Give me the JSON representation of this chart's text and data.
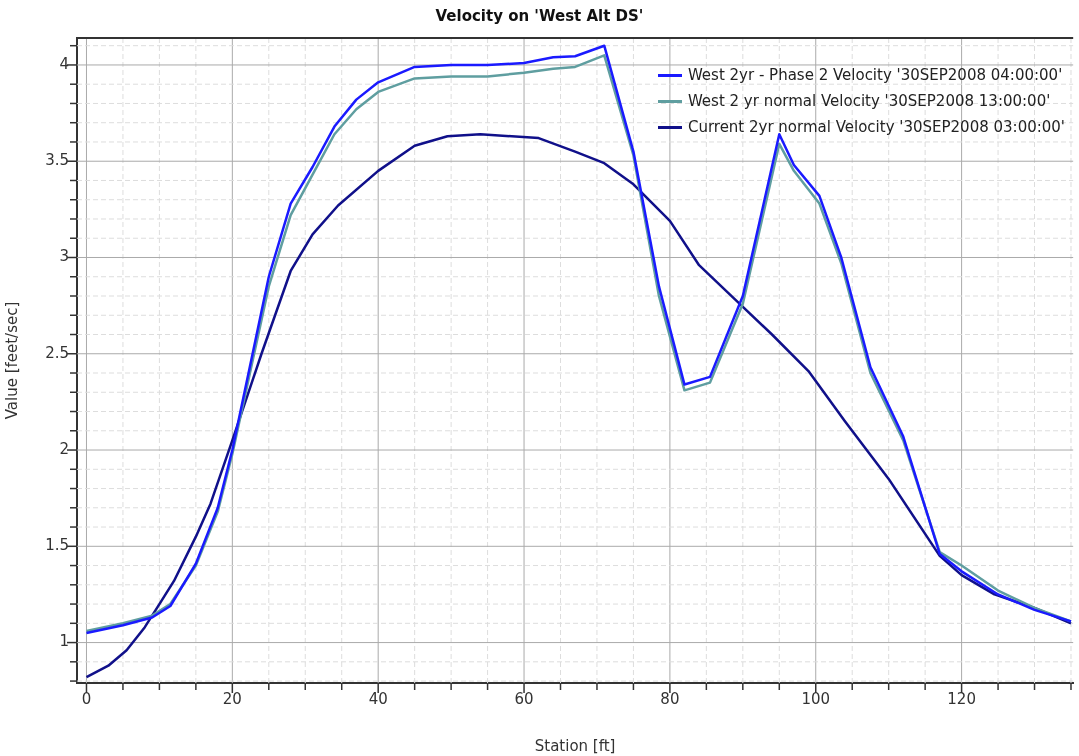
{
  "chart_data": {
    "type": "line",
    "title": "Velocity on 'West Alt DS'",
    "xlabel": "Station [ft]",
    "ylabel": "Value [feet/sec]",
    "xlim": [
      -1.3,
      135.3
    ],
    "ylim": [
      0.79,
      4.14
    ],
    "xticks": [
      0,
      {
        "value": 5,
        "label": null
      },
      {
        "value": 10,
        "label": null
      },
      {
        "value": 15,
        "label": null
      },
      20,
      {
        "value": 25,
        "label": null
      },
      {
        "value": 30,
        "label": null
      },
      {
        "value": 35,
        "label": null
      },
      40,
      {
        "value": 45,
        "label": null
      },
      {
        "value": 50,
        "label": null
      },
      {
        "value": 55,
        "label": null
      },
      60,
      {
        "value": 65,
        "label": null
      },
      {
        "value": 70,
        "label": null
      },
      {
        "value": 75,
        "label": null
      },
      80,
      {
        "value": 85,
        "label": null
      },
      {
        "value": 90,
        "label": null
      },
      {
        "value": 95,
        "label": null
      },
      100,
      {
        "value": 105,
        "label": null
      },
      {
        "value": 110,
        "label": null
      },
      {
        "value": 115,
        "label": null
      },
      120,
      {
        "value": 125,
        "label": null
      },
      {
        "value": 130,
        "label": null
      },
      {
        "value": 135,
        "label": null
      }
    ],
    "yticks": [
      {
        "value": 0.8,
        "label": null
      },
      {
        "value": 0.9,
        "label": null
      },
      1,
      {
        "value": 1.1,
        "label": null
      },
      {
        "value": 1.2,
        "label": null
      },
      {
        "value": 1.3,
        "label": null
      },
      {
        "value": 1.4,
        "label": null
      },
      1.5,
      {
        "value": 1.6,
        "label": null
      },
      {
        "value": 1.7,
        "label": null
      },
      {
        "value": 1.8,
        "label": null
      },
      {
        "value": 1.9,
        "label": null
      },
      2,
      {
        "value": 2.1,
        "label": null
      },
      {
        "value": 2.2,
        "label": null
      },
      {
        "value": 2.3,
        "label": null
      },
      {
        "value": 2.4,
        "label": null
      },
      2.5,
      {
        "value": 2.6,
        "label": null
      },
      {
        "value": 2.7,
        "label": null
      },
      {
        "value": 2.8,
        "label": null
      },
      {
        "value": 2.9,
        "label": null
      },
      3,
      {
        "value": 3.1,
        "label": null
      },
      {
        "value": 3.2,
        "label": null
      },
      {
        "value": 3.3,
        "label": null
      },
      {
        "value": 3.4,
        "label": null
      },
      3.5,
      {
        "value": 3.6,
        "label": null
      },
      {
        "value": 3.7,
        "label": null
      },
      {
        "value": 3.8,
        "label": null
      },
      {
        "value": 3.9,
        "label": null
      },
      4,
      {
        "value": 4.1,
        "label": null
      }
    ],
    "grid": true,
    "legend": "top right",
    "marker": "none",
    "line_style": "solid",
    "series": [
      {
        "name": "West 2yr - Phase 2 Velocity '30SEP2008 04:00:00'",
        "color": "#1a1aff",
        "x": [
          0,
          5,
          9,
          11.5,
          15,
          18,
          20,
          25,
          28,
          31,
          34,
          37,
          40,
          45,
          50,
          55,
          60,
          64,
          67,
          71,
          75,
          78.5,
          82,
          85.5,
          90,
          95,
          97,
          100.5,
          103.5,
          107.5,
          112,
          117,
          120,
          125,
          130,
          135
        ],
        "values": [
          1.05,
          1.09,
          1.13,
          1.19,
          1.41,
          1.7,
          2.0,
          2.9,
          3.28,
          3.47,
          3.68,
          3.82,
          3.91,
          3.99,
          4.0,
          4.0,
          4.01,
          4.04,
          4.045,
          4.1,
          3.55,
          2.85,
          2.34,
          2.38,
          2.8,
          3.64,
          3.48,
          3.32,
          3.0,
          2.43,
          2.07,
          1.46,
          1.37,
          1.25,
          1.17,
          1.11
        ]
      },
      {
        "name": "West 2 yr normal Velocity '30SEP2008 13:00:00'",
        "color": "#5f9ea0",
        "x": [
          0,
          5,
          9,
          11.5,
          15,
          18,
          20,
          25,
          28,
          31,
          34,
          37,
          40,
          45,
          50,
          55,
          60,
          64,
          67,
          71,
          75,
          78.5,
          82,
          85.5,
          90,
          95,
          97,
          100.5,
          103.5,
          107.5,
          112,
          117,
          120,
          125,
          130,
          135
        ],
        "values": [
          1.06,
          1.1,
          1.14,
          1.2,
          1.4,
          1.68,
          1.98,
          2.85,
          3.22,
          3.43,
          3.64,
          3.77,
          3.86,
          3.93,
          3.94,
          3.94,
          3.96,
          3.98,
          3.99,
          4.05,
          3.53,
          2.8,
          2.31,
          2.35,
          2.76,
          3.59,
          3.45,
          3.28,
          2.97,
          2.4,
          2.05,
          1.47,
          1.4,
          1.27,
          1.18,
          1.11
        ]
      },
      {
        "name": "Current 2yr normal Velocity '30SEP2008 03:00:00'",
        "color": "#10108a",
        "x": [
          0,
          3,
          5.5,
          8,
          10,
          12,
          15,
          17,
          20,
          24,
          28,
          31,
          34.5,
          40,
          45,
          49.5,
          54,
          62,
          67,
          71,
          75,
          80,
          84,
          89,
          94,
          99,
          104,
          110,
          117,
          120,
          124.5,
          130,
          135
        ],
        "values": [
          0.82,
          0.88,
          0.96,
          1.08,
          1.2,
          1.32,
          1.55,
          1.72,
          2.05,
          2.5,
          2.93,
          3.12,
          3.27,
          3.45,
          3.58,
          3.63,
          3.64,
          3.62,
          3.55,
          3.49,
          3.38,
          3.19,
          2.96,
          2.78,
          2.6,
          2.41,
          2.15,
          1.85,
          1.45,
          1.35,
          1.25,
          1.18,
          1.1
        ]
      }
    ]
  }
}
